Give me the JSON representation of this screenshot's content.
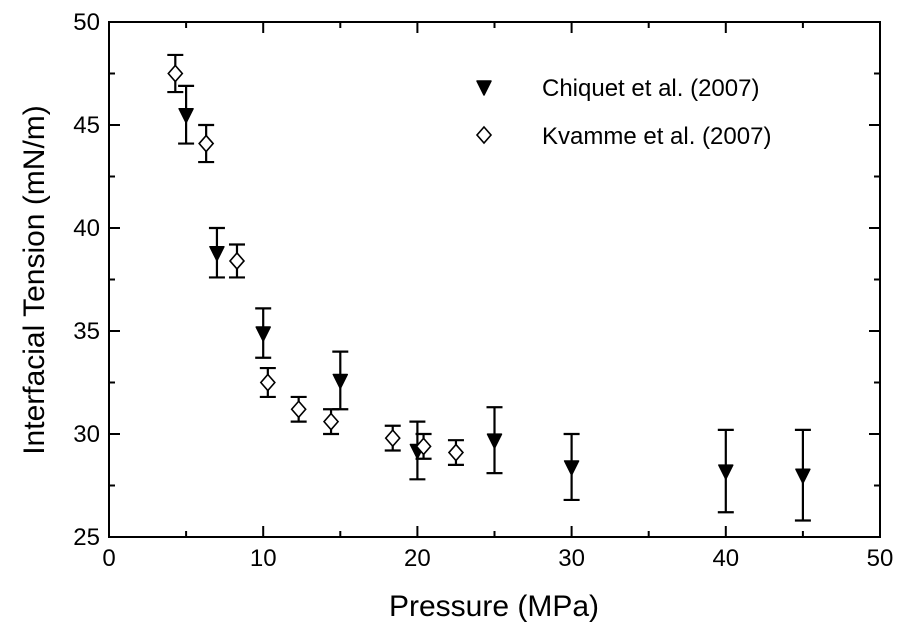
{
  "chart_data": {
    "type": "scatter",
    "title": "",
    "xlabel": "Pressure (MPa)",
    "ylabel": "Interfacial Tension (mN/m)",
    "xlim": [
      0,
      50
    ],
    "ylim": [
      25,
      50
    ],
    "x_ticks": [
      0,
      10,
      20,
      30,
      40,
      50
    ],
    "y_ticks": [
      25,
      30,
      35,
      40,
      45,
      50
    ],
    "x_tick_labels": [
      "0",
      "10",
      "20",
      "30",
      "40",
      "50"
    ],
    "y_tick_labels": [
      "25",
      "30",
      "35",
      "40",
      "45",
      "50"
    ],
    "grid": false,
    "legend_position": "top-right",
    "series": [
      {
        "name": "Chiquet et al. (2007)",
        "marker": "filled-down-triangle",
        "color": "#000000",
        "points": [
          {
            "x": 5,
            "y": 45.5,
            "err": 1.4
          },
          {
            "x": 7,
            "y": 38.8,
            "err": 1.2
          },
          {
            "x": 10,
            "y": 34.9,
            "err": 1.2
          },
          {
            "x": 15,
            "y": 32.6,
            "err": 1.4
          },
          {
            "x": 20,
            "y": 29.2,
            "err": 1.4
          },
          {
            "x": 25,
            "y": 29.7,
            "err": 1.6
          },
          {
            "x": 30,
            "y": 28.4,
            "err": 1.6
          },
          {
            "x": 40,
            "y": 28.2,
            "err": 2.0
          },
          {
            "x": 45,
            "y": 28.0,
            "err": 2.2
          }
        ]
      },
      {
        "name": "Kvamme et al. (2007)",
        "marker": "open-diamond",
        "color": "#000000",
        "points": [
          {
            "x": 4.3,
            "y": 47.5,
            "err": 0.9
          },
          {
            "x": 6.3,
            "y": 44.1,
            "err": 0.9
          },
          {
            "x": 8.3,
            "y": 38.4,
            "err": 0.8
          },
          {
            "x": 10.3,
            "y": 32.5,
            "err": 0.7
          },
          {
            "x": 12.3,
            "y": 31.2,
            "err": 0.6
          },
          {
            "x": 14.4,
            "y": 30.6,
            "err": 0.6
          },
          {
            "x": 18.4,
            "y": 29.8,
            "err": 0.6
          },
          {
            "x": 20.4,
            "y": 29.4,
            "err": 0.6
          },
          {
            "x": 22.5,
            "y": 29.1,
            "err": 0.6
          }
        ]
      }
    ]
  }
}
